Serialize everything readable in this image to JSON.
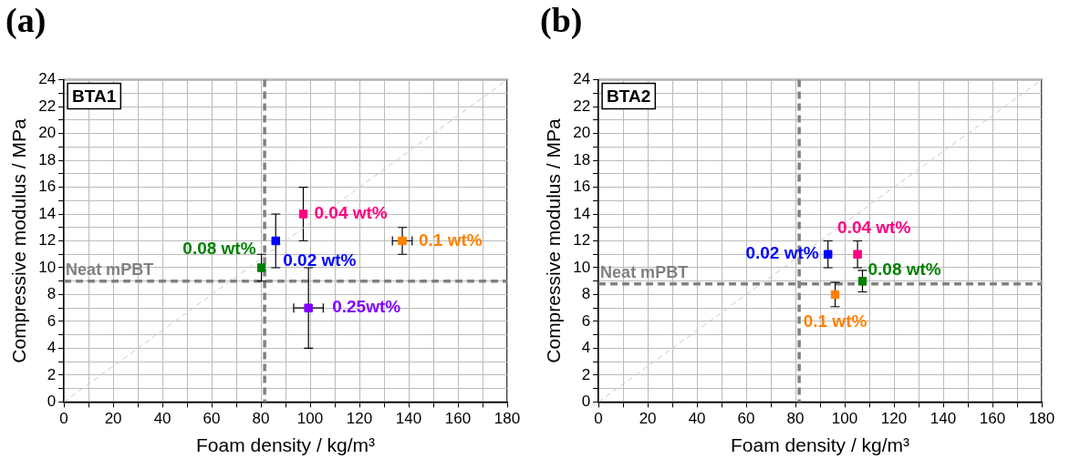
{
  "chart_data": [
    {
      "type": "scatter",
      "title": "(a)",
      "xlabel": "Foam density / kg/m³",
      "ylabel": "Compressive modulus / MPa",
      "annotations": [
        "BTA1"
      ],
      "xlim": [
        0,
        180
      ],
      "ylim": [
        0,
        24
      ],
      "xticks": [
        0,
        {
          "value": 10,
          "label": null
        },
        20,
        {
          "value": 30,
          "label": null
        },
        40,
        {
          "value": 50,
          "label": null
        },
        60,
        {
          "value": 70,
          "label": null
        },
        80,
        {
          "value": 90,
          "label": null
        },
        100,
        {
          "value": 110,
          "label": null
        },
        120,
        {
          "value": 130,
          "label": null
        },
        140,
        {
          "value": 150,
          "label": null
        },
        160,
        {
          "value": 170,
          "label": null
        },
        180
      ],
      "yticks": [
        0,
        {
          "value": 1,
          "label": null
        },
        2,
        {
          "value": 3,
          "label": null
        },
        4,
        {
          "value": 5,
          "label": null
        },
        6,
        {
          "value": 7,
          "label": null
        },
        8,
        {
          "value": 9,
          "label": null
        },
        10,
        {
          "value": 11,
          "label": null
        },
        12,
        {
          "value": 13,
          "label": null
        },
        14,
        {
          "value": 15,
          "label": null
        },
        16,
        {
          "value": 17,
          "label": null
        },
        18,
        {
          "value": 19,
          "label": null
        },
        20,
        {
          "value": 21,
          "label": null
        },
        22,
        {
          "value": 23,
          "label": null
        },
        24
      ],
      "grid": true,
      "legend": false,
      "marker": "square",
      "ref_lines": [
        {
          "axis": "x",
          "value": 81.5,
          "color": "#808080",
          "line_style": "dashed"
        },
        {
          "axis": "y",
          "value": 9,
          "label": "Neat mPBT",
          "color": "#808080",
          "line_style": "dashed"
        }
      ],
      "series": [
        {
          "type": "line",
          "x": [
            0,
            180
          ],
          "values": [
            0,
            24
          ],
          "color": "#c8c8c8",
          "line_style": "dashed",
          "marker": "none"
        },
        {
          "name": "0.08 wt%",
          "color": "#008000",
          "x": [
            80.2
          ],
          "values": [
            10
          ],
          "errors": [
            1
          ]
        },
        {
          "name": "0.02 wt%",
          "color": "#0000ff",
          "x": [
            86
          ],
          "values": [
            12
          ],
          "errors": [
            2
          ]
        },
        {
          "name": "0.04 wt%",
          "color": "#ff0080",
          "x": [
            97.2
          ],
          "values": [
            14
          ],
          "errors": [
            2
          ]
        },
        {
          "name": "0.1 wt%",
          "color": "#ff8000",
          "x": [
            137.4
          ],
          "values": [
            12
          ],
          "errors": [
            1
          ],
          "xerrors": [
            4
          ]
        },
        {
          "name": "0.25wt%",
          "color": "#8000ff",
          "x": [
            99.3
          ],
          "values": [
            7
          ],
          "errors": [
            3
          ],
          "xerrors": [
            6
          ]
        }
      ]
    },
    {
      "type": "scatter",
      "title": "(b)",
      "xlabel": "Foam density / kg/m³",
      "ylabel": "Compressive modulus / MPa",
      "annotations": [
        "BTA2"
      ],
      "xlim": [
        0,
        180
      ],
      "ylim": [
        0,
        24
      ],
      "xticks": [
        0,
        {
          "value": 10,
          "label": null
        },
        20,
        {
          "value": 30,
          "label": null
        },
        40,
        {
          "value": 50,
          "label": null
        },
        60,
        {
          "value": 70,
          "label": null
        },
        80,
        {
          "value": 90,
          "label": null
        },
        100,
        {
          "value": 110,
          "label": null
        },
        120,
        {
          "value": 130,
          "label": null
        },
        140,
        {
          "value": 150,
          "label": null
        },
        160,
        {
          "value": 170,
          "label": null
        },
        180
      ],
      "yticks": [
        0,
        {
          "value": 1,
          "label": null
        },
        2,
        {
          "value": 3,
          "label": null
        },
        4,
        {
          "value": 5,
          "label": null
        },
        6,
        {
          "value": 7,
          "label": null
        },
        8,
        {
          "value": 9,
          "label": null
        },
        10,
        {
          "value": 11,
          "label": null
        },
        12,
        {
          "value": 13,
          "label": null
        },
        14,
        {
          "value": 15,
          "label": null
        },
        16,
        {
          "value": 17,
          "label": null
        },
        18,
        {
          "value": 19,
          "label": null
        },
        20,
        {
          "value": 21,
          "label": null
        },
        22,
        {
          "value": 23,
          "label": null
        },
        24
      ],
      "grid": true,
      "legend": false,
      "marker": "square",
      "ref_lines": [
        {
          "axis": "x",
          "value": 81.5,
          "color": "#808080",
          "line_style": "dashed"
        },
        {
          "axis": "y",
          "value": 8.8,
          "label": "Neat mPBT",
          "color": "#808080",
          "line_style": "dashed"
        }
      ],
      "series": [
        {
          "type": "line",
          "x": [
            0,
            180
          ],
          "values": [
            0,
            24
          ],
          "color": "#c8c8c8",
          "line_style": "dashed",
          "marker": "none"
        },
        {
          "name": "0.02 wt%",
          "color": "#0000ff",
          "x": [
            93.2
          ],
          "values": [
            11
          ],
          "errors": [
            1
          ]
        },
        {
          "name": "0.04 wt%",
          "color": "#ff0080",
          "x": [
            105.2
          ],
          "values": [
            11
          ],
          "errors": [
            1
          ]
        },
        {
          "name": "0.08 wt%",
          "color": "#008000",
          "x": [
            107.2
          ],
          "values": [
            9
          ],
          "errors": [
            0.8
          ]
        },
        {
          "name": "0.1 wt%",
          "color": "#ff8000",
          "x": [
            96.1
          ],
          "values": [
            8
          ],
          "errors": [
            0.9
          ]
        }
      ]
    }
  ]
}
